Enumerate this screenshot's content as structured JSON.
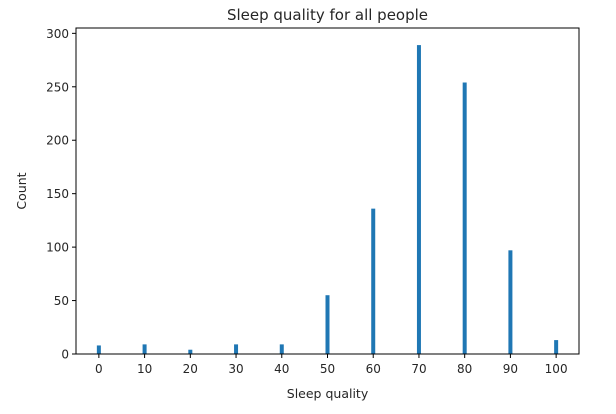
{
  "chart_data": {
    "type": "bar",
    "title": "Sleep quality for all people",
    "xlabel": "Sleep quality",
    "ylabel": "Count",
    "categories": [
      "0",
      "10",
      "20",
      "30",
      "40",
      "50",
      "60",
      "70",
      "80",
      "90",
      "100"
    ],
    "x": [
      0,
      10,
      20,
      30,
      40,
      50,
      60,
      70,
      80,
      90,
      100
    ],
    "values": [
      8,
      9,
      4,
      9,
      9,
      55,
      136,
      289,
      254,
      97,
      13
    ],
    "xlim": [
      -5,
      105
    ],
    "ylim": [
      0,
      305
    ],
    "xticks": [
      0,
      10,
      20,
      30,
      40,
      50,
      60,
      70,
      80,
      90,
      100
    ],
    "yticks": [
      0,
      50,
      100,
      150,
      200,
      250,
      300
    ],
    "grid": false,
    "colors": {
      "bar": "#1f77b4",
      "axis": "#000000",
      "text": "#262626"
    }
  }
}
